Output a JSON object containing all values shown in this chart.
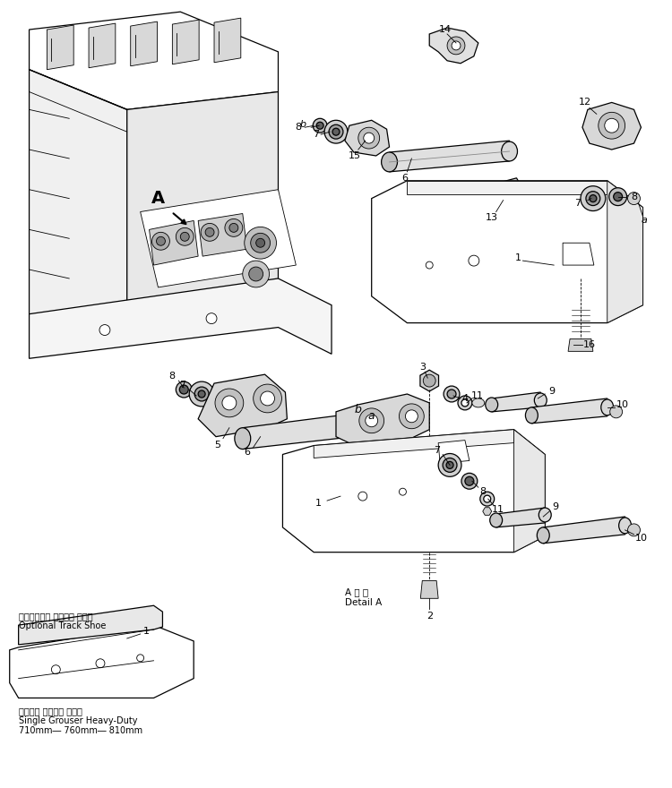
{
  "bg_color": "#ffffff",
  "line_color": "#000000",
  "figsize": [
    7.5,
    8.8
  ],
  "dpi": 100,
  "detail_ja": "オプショナル トラック シュー",
  "detail_en": "Optional Track Shoe",
  "detail_A_ja": "A 詳 細",
  "detail_A_en": "Detail A",
  "shoe_ja": "シングル グローサ 強化形",
  "shoe_en": "Single Grouser Heavy-Duty",
  "shoe_size": "710mm― 760mm― 810mm",
  "lw_main": 0.9,
  "lw_thin": 0.6,
  "lw_leader": 0.6,
  "font_label": 8,
  "font_small": 7
}
